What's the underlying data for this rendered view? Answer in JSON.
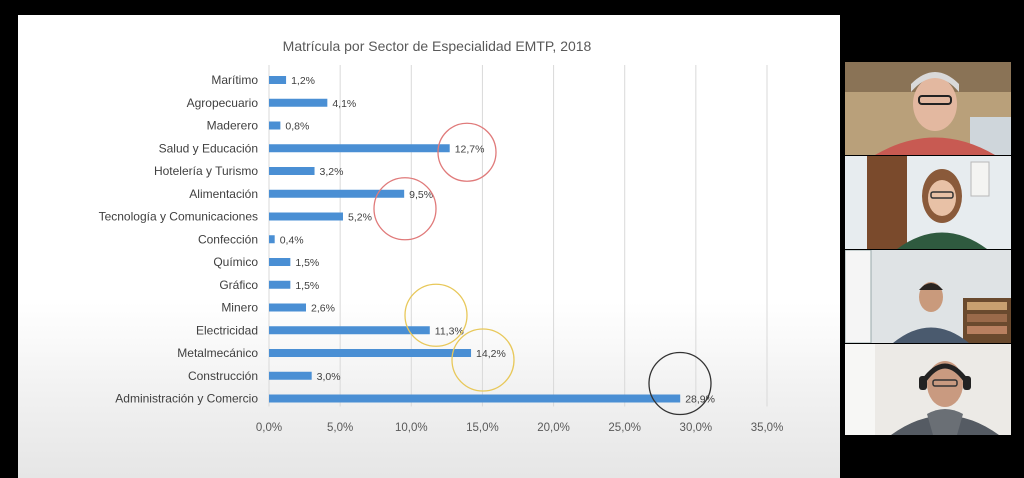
{
  "chart_data": {
    "type": "bar",
    "orientation": "horizontal",
    "title": "Matrícula por Sector de Especialidad EMTP, 2018",
    "xlabel": "",
    "ylabel": "",
    "categories": [
      "Marítimo",
      "Agropecuario",
      "Maderero",
      "Salud y Educación",
      "Hotelería y Turismo",
      "Alimentación",
      "Tecnología y Comunicaciones",
      "Confección",
      "Químico",
      "Gráfico",
      "Minero",
      "Electricidad",
      "Metalmecánico",
      "Construcción",
      "Administración y Comercio"
    ],
    "values": [
      1.2,
      4.1,
      0.8,
      12.7,
      3.2,
      9.5,
      5.2,
      0.4,
      1.5,
      1.5,
      2.6,
      11.3,
      14.2,
      3.0,
      28.9
    ],
    "value_labels": [
      "1,2%",
      "4,1%",
      "0,8%",
      "12,7%",
      "3,2%",
      "9,5%",
      "5,2%",
      "0,4%",
      "1,5%",
      "1,5%",
      "2,6%",
      "11,3%",
      "14,2%",
      "3,0%",
      "28,9%"
    ],
    "xlim": [
      0,
      35
    ],
    "x_ticks": [
      0,
      5,
      10,
      15,
      20,
      25,
      30,
      35
    ],
    "x_tick_labels": [
      "0,0%",
      "5,0%",
      "10,0%",
      "15,0%",
      "20,0%",
      "25,0%",
      "30,0%",
      "35,0%"
    ],
    "grid": "vertical",
    "legend": "none",
    "bar_color": "#4a8fd4",
    "annotations": [
      {
        "type": "circle",
        "color": "#e07a7a",
        "near_category": "Salud y Educación"
      },
      {
        "type": "circle",
        "color": "#e07a7a",
        "near_category": "Alimentación"
      },
      {
        "type": "circle",
        "color": "#e8c85a",
        "near_category": "Electricidad"
      },
      {
        "type": "circle",
        "color": "#e8c85a",
        "near_category": "Metalmecánico"
      },
      {
        "type": "circle",
        "color": "#333333",
        "near_category": "Administración y Comercio"
      }
    ]
  },
  "participants": [
    {
      "tile": "participant-1",
      "description_icon": "person-video-icon"
    },
    {
      "tile": "participant-2",
      "description_icon": "person-video-icon"
    },
    {
      "tile": "participant-3",
      "description_icon": "person-video-icon"
    },
    {
      "tile": "participant-4",
      "description_icon": "person-video-icon"
    }
  ]
}
